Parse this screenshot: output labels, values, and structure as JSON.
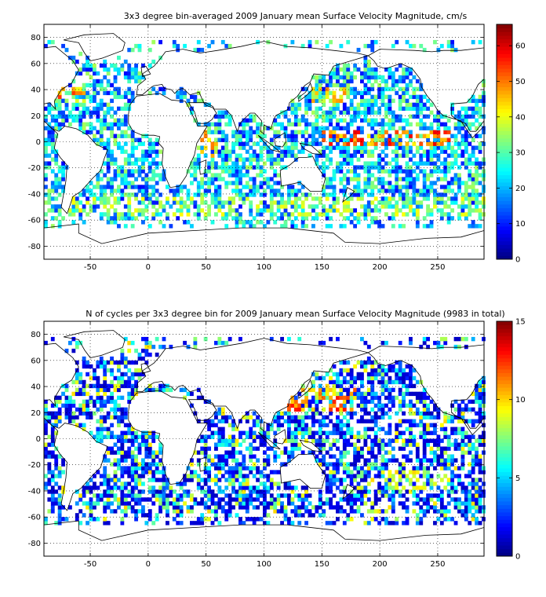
{
  "chart_data": [
    {
      "type": "heatmap",
      "title": "3x3 degree bin-averaged 2009 January mean Surface Velocity Magnitude, cm/s",
      "xlabel": "",
      "ylabel": "",
      "xlim": [
        -90,
        290
      ],
      "ylim": [
        -90,
        90
      ],
      "xticks": [
        -50,
        0,
        50,
        100,
        150,
        200,
        250
      ],
      "yticks": [
        80,
        60,
        40,
        20,
        0,
        -20,
        -40,
        -60,
        -80
      ],
      "bin_size_deg": 3,
      "grid": true,
      "colorbar": {
        "min": 0,
        "max": 66,
        "ticks": [
          0,
          10,
          20,
          30,
          40,
          50,
          60
        ],
        "colormap": "jet",
        "placement": "right"
      },
      "value_range": [
        0,
        66
      ],
      "high_regions": [
        {
          "lon": [
            150,
            260
          ],
          "lat": [
            -3,
            9
          ],
          "level": 60
        },
        {
          "lon": [
            -80,
            -55
          ],
          "lat": [
            30,
            45
          ],
          "level": 55
        },
        {
          "lon": [
            140,
            170
          ],
          "lat": [
            30,
            42
          ],
          "level": 50
        },
        {
          "lon": [
            -90,
            290
          ],
          "lat": [
            -58,
            -42
          ],
          "level": 42
        },
        {
          "lon": [
            40,
            60
          ],
          "lat": [
            -12,
            10
          ],
          "level": 50
        }
      ]
    },
    {
      "type": "heatmap",
      "title": "N of cycles per 3x3 degree bin for 2009 January mean Surface Velocity Magnitude (9983 in total)",
      "xlabel": "",
      "ylabel": "",
      "xlim": [
        -90,
        290
      ],
      "ylim": [
        -90,
        90
      ],
      "xticks": [
        -50,
        0,
        50,
        100,
        150,
        200,
        250
      ],
      "yticks": [
        80,
        60,
        40,
        20,
        0,
        -20,
        -40,
        -60,
        -80
      ],
      "bin_size_deg": 3,
      "grid": true,
      "colorbar": {
        "min": 0,
        "max": 15,
        "ticks": [
          0,
          5,
          10,
          15
        ],
        "colormap": "jet",
        "placement": "right"
      },
      "total_cycles": 9983,
      "value_range": [
        0,
        15
      ],
      "high_regions": [
        {
          "lon": [
            110,
            180
          ],
          "lat": [
            20,
            40
          ],
          "level": 13
        },
        {
          "lon": [
            200,
            260
          ],
          "lat": [
            -40,
            -25
          ],
          "level": 10
        }
      ]
    }
  ]
}
